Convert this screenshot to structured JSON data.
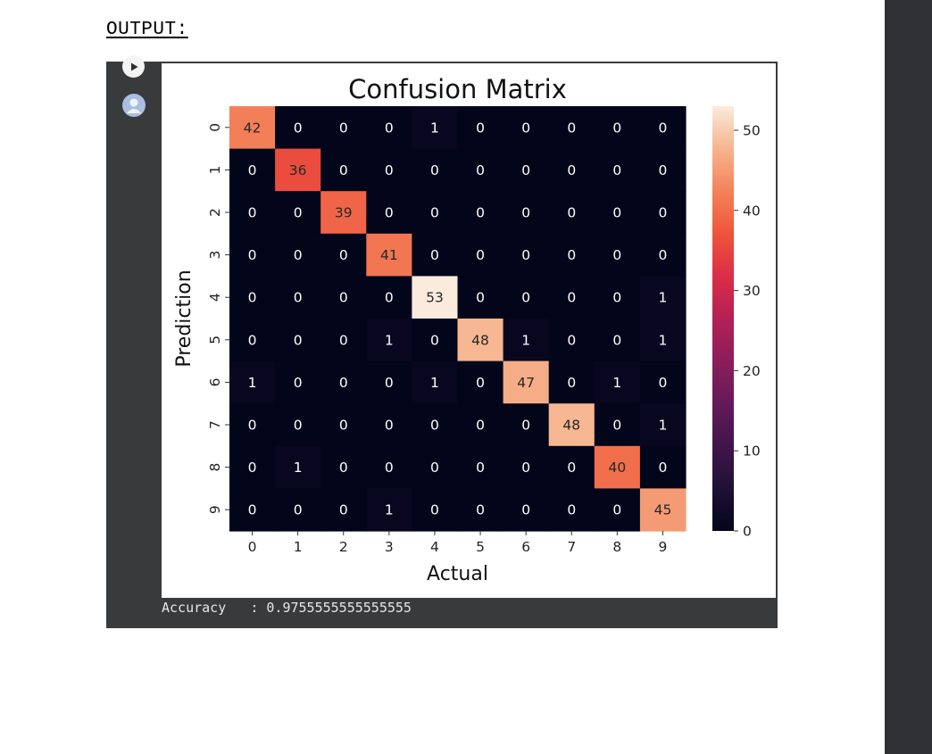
{
  "heading": "OUTPUT:",
  "output": {
    "accuracy_label": "Accuracy",
    "accuracy_separator": ":",
    "accuracy_value": "0.9755555555555555"
  },
  "icons": {
    "run": "play-icon",
    "avatar": "user-avatar-icon"
  },
  "chart_data": {
    "type": "heatmap",
    "title": "Confusion Matrix",
    "xlabel": "Actual",
    "ylabel": "Prediction",
    "x_labels": [
      "0",
      "1",
      "2",
      "3",
      "4",
      "5",
      "6",
      "7",
      "8",
      "9"
    ],
    "y_labels": [
      "0",
      "1",
      "2",
      "3",
      "4",
      "5",
      "6",
      "7",
      "8",
      "9"
    ],
    "values": [
      [
        42,
        0,
        0,
        0,
        1,
        0,
        0,
        0,
        0,
        0
      ],
      [
        0,
        36,
        0,
        0,
        0,
        0,
        0,
        0,
        0,
        0
      ],
      [
        0,
        0,
        39,
        0,
        0,
        0,
        0,
        0,
        0,
        0
      ],
      [
        0,
        0,
        0,
        41,
        0,
        0,
        0,
        0,
        0,
        0
      ],
      [
        0,
        0,
        0,
        0,
        53,
        0,
        0,
        0,
        0,
        1
      ],
      [
        0,
        0,
        0,
        1,
        0,
        48,
        1,
        0,
        0,
        1
      ],
      [
        1,
        0,
        0,
        0,
        1,
        0,
        47,
        0,
        1,
        0
      ],
      [
        0,
        0,
        0,
        0,
        0,
        0,
        0,
        48,
        0,
        1
      ],
      [
        0,
        1,
        0,
        0,
        0,
        0,
        0,
        0,
        40,
        0
      ],
      [
        0,
        0,
        0,
        1,
        0,
        0,
        0,
        0,
        0,
        45
      ]
    ],
    "colorbar_ticks": [
      "0",
      "10",
      "20",
      "30",
      "40",
      "50"
    ],
    "colorbar_range": [
      0,
      53
    ],
    "colormap": "rocket",
    "annotated": true
  }
}
